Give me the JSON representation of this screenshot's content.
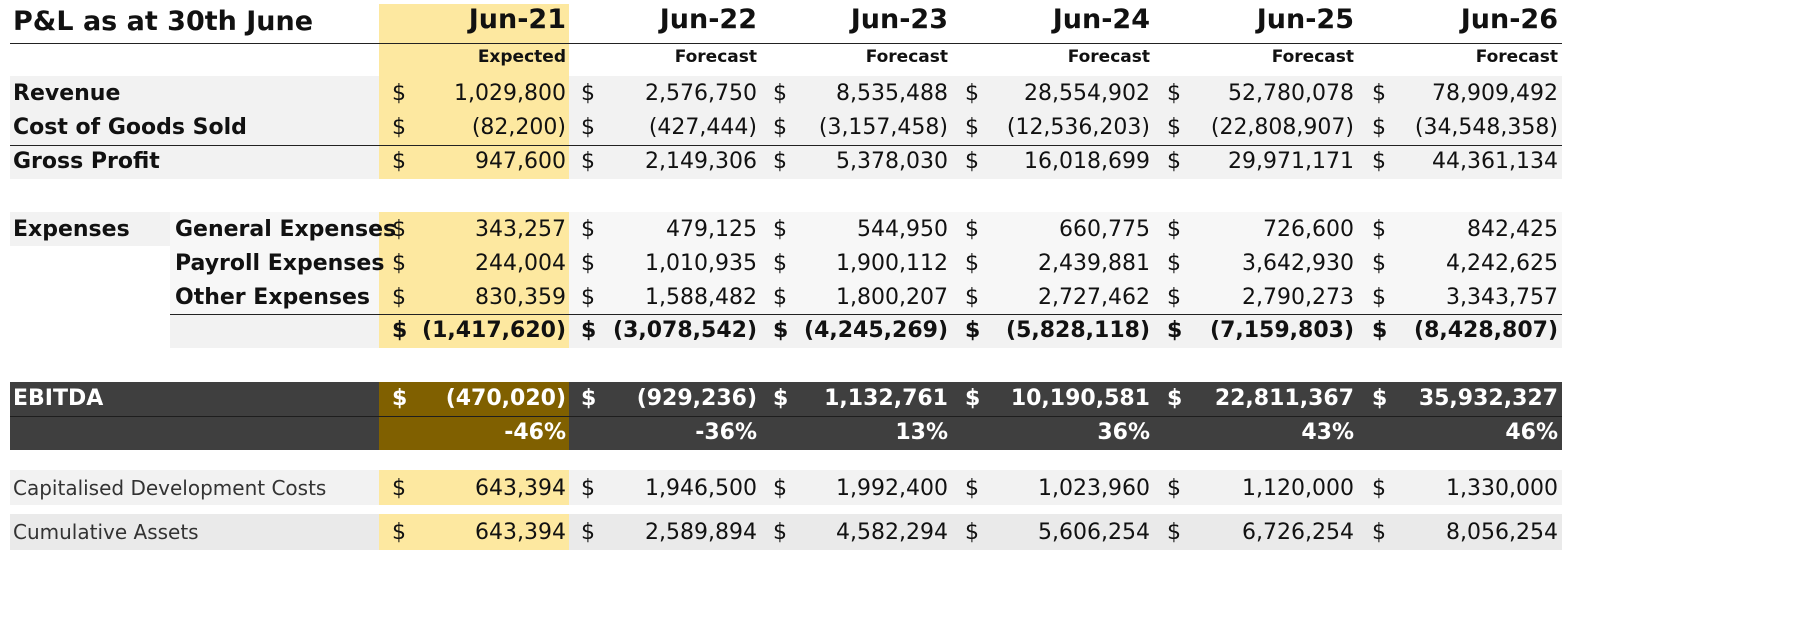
{
  "title": "P&L as at 30th June",
  "currency": "$",
  "columns": [
    {
      "period": "Jun-21",
      "status": "Expected"
    },
    {
      "period": "Jun-22",
      "status": "Forecast"
    },
    {
      "period": "Jun-23",
      "status": "Forecast"
    },
    {
      "period": "Jun-24",
      "status": "Forecast"
    },
    {
      "period": "Jun-25",
      "status": "Forecast"
    },
    {
      "period": "Jun-26",
      "status": "Forecast"
    }
  ],
  "revenue": {
    "label": "Revenue",
    "values": [
      "1,029,800",
      "2,576,750",
      "8,535,488",
      "28,554,902",
      "52,780,078",
      "78,909,492"
    ]
  },
  "cogs": {
    "label": "Cost of Goods Sold",
    "values": [
      "(82,200)",
      "(427,444)",
      "(3,157,458)",
      "(12,536,203)",
      "(22,808,907)",
      "(34,548,358)"
    ]
  },
  "gross_profit": {
    "label": "Gross Profit",
    "values": [
      "947,600",
      "2,149,306",
      "5,378,030",
      "16,018,699",
      "29,971,171",
      "44,361,134"
    ]
  },
  "expenses": {
    "label": "Expenses",
    "general": {
      "label": "General Expenses",
      "values": [
        "343,257",
        "479,125",
        "544,950",
        "660,775",
        "726,600",
        "842,425"
      ]
    },
    "payroll": {
      "label": "Payroll Expenses",
      "values": [
        "244,004",
        "1,010,935",
        "1,900,112",
        "2,439,881",
        "3,642,930",
        "4,242,625"
      ]
    },
    "other": {
      "label": "Other Expenses",
      "values": [
        "830,359",
        "1,588,482",
        "1,800,207",
        "2,727,462",
        "2,790,273",
        "3,343,757"
      ]
    },
    "total": {
      "values": [
        "(1,417,620)",
        "(3,078,542)",
        "(4,245,269)",
        "(5,828,118)",
        "(7,159,803)",
        "(8,428,807)"
      ]
    }
  },
  "ebitda": {
    "label": "EBITDA",
    "values": [
      "(470,020)",
      "(929,236)",
      "1,132,761",
      "10,190,581",
      "22,811,367",
      "35,932,327"
    ]
  },
  "ebitda_margin": {
    "values": [
      "-46%",
      "-36%",
      "13%",
      "36%",
      "43%",
      "46%"
    ]
  },
  "cap_dev_costs": {
    "label": "Capitalised Development Costs",
    "values": [
      "643,394",
      "1,946,500",
      "1,992,400",
      "1,023,960",
      "1,120,000",
      "1,330,000"
    ]
  },
  "cumulative_assets": {
    "label": "Cumulative Assets",
    "values": [
      "643,394",
      "2,589,894",
      "4,582,294",
      "5,606,254",
      "6,726,254",
      "8,056,254"
    ]
  },
  "colors": {
    "highlight": "#fde8a0",
    "ebitda_bg": "#3f3f3f",
    "ebitda_highlight": "#806000",
    "row_shade": "#f2f2f2"
  }
}
